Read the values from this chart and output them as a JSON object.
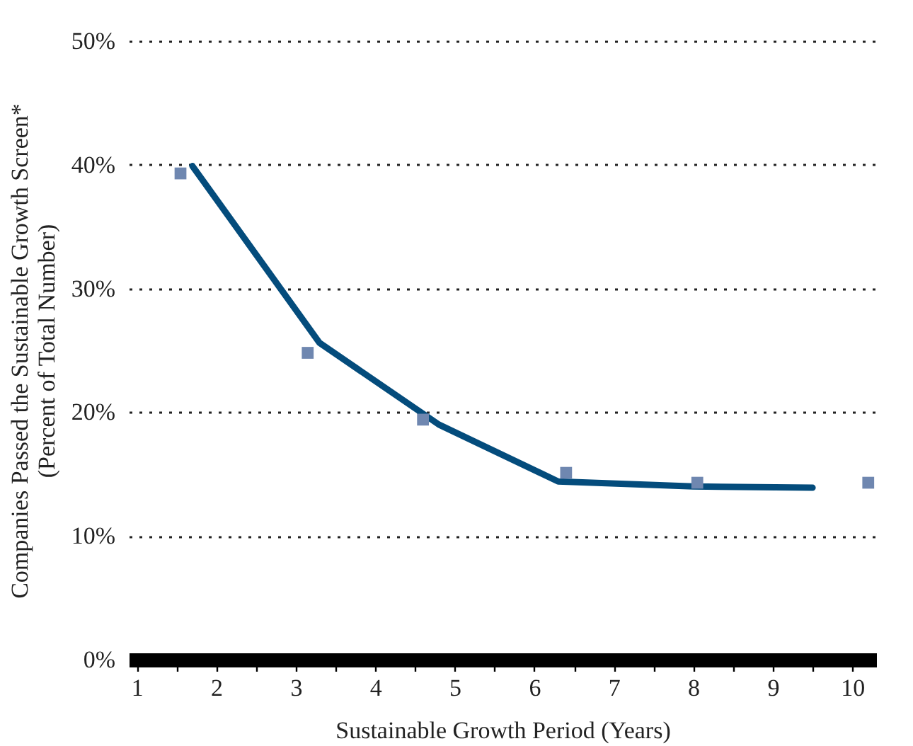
{
  "chart_data": {
    "type": "line",
    "xlabel": "Sustainable Growth Period (Years)",
    "ylabel": "Companies Passed the Sustainable Growth Screen*\n(Percent of Total Number)",
    "xlim": [
      0.9,
      10.3
    ],
    "xticks": [
      1,
      {
        "value": 1.5,
        "label": null
      },
      2,
      {
        "value": 2.5,
        "label": null
      },
      3,
      {
        "value": 3.5,
        "label": null
      },
      4,
      {
        "value": 4.5,
        "label": null
      },
      5,
      {
        "value": 5.5,
        "label": null
      },
      6,
      {
        "value": 6.5,
        "label": null
      },
      7,
      {
        "value": 7.5,
        "label": null
      },
      8,
      {
        "value": 8.5,
        "label": null
      },
      9,
      {
        "value": 9.5,
        "label": null
      },
      10
    ],
    "ylim": [
      0,
      50
    ],
    "yticks": [
      {
        "value": 0,
        "label": "0%"
      },
      {
        "value": 10,
        "label": "10%"
      },
      {
        "value": 20,
        "label": "20%"
      },
      {
        "value": 30,
        "label": "30%"
      },
      {
        "value": 40,
        "label": "40%"
      },
      {
        "value": 50,
        "label": "50%"
      }
    ],
    "grid": "y",
    "series": [
      {
        "type": "line",
        "color": "#044c7c",
        "marker": "none",
        "line_style": "solid",
        "x": [
          1.7,
          3.3,
          4.8,
          6.3,
          8.0,
          9.5
        ],
        "values": [
          39.9,
          25.6,
          19.0,
          14.4,
          14.0,
          13.9
        ]
      },
      {
        "type": "scatter",
        "color": "#6f87b0",
        "marker": "square",
        "x": [
          1.55,
          3.15,
          4.6,
          6.4,
          8.05,
          10.2
        ],
        "values": [
          39.3,
          24.8,
          19.4,
          15.1,
          14.3,
          14.3
        ]
      }
    ]
  }
}
